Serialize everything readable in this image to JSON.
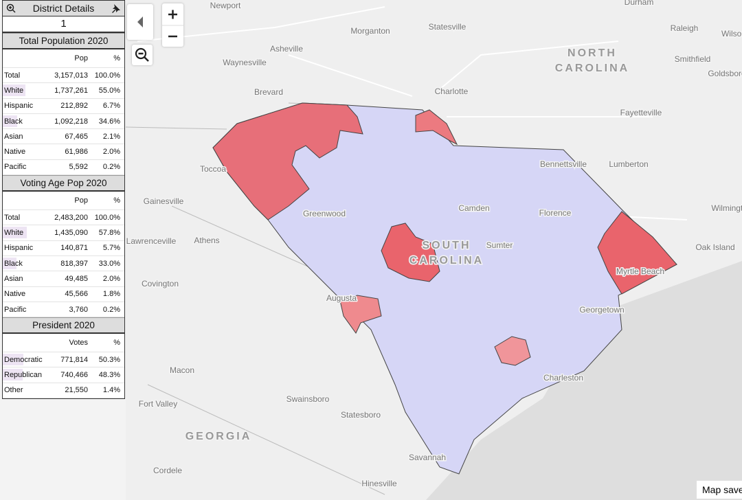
{
  "panel": {
    "title": "District Details",
    "district": "1",
    "sections": [
      {
        "title": "Total Population 2020",
        "columns": [
          "Pop",
          "%"
        ],
        "rows": [
          [
            "Total",
            "3,157,013",
            "100.0%"
          ],
          [
            "White",
            "1,737,261",
            "55.0%"
          ],
          [
            "Hispanic",
            "212,892",
            "6.7%"
          ],
          [
            "Black",
            "1,092,218",
            "34.6%"
          ],
          [
            "Asian",
            "67,465",
            "2.1%"
          ],
          [
            "Native",
            "61,986",
            "2.0%"
          ],
          [
            "Pacific",
            "5,592",
            "0.2%"
          ]
        ]
      },
      {
        "title": "Voting Age Pop 2020",
        "columns": [
          "Pop",
          "%"
        ],
        "rows": [
          [
            "Total",
            "2,483,200",
            "100.0%"
          ],
          [
            "White",
            "1,435,090",
            "57.8%"
          ],
          [
            "Hispanic",
            "140,871",
            "5.7%"
          ],
          [
            "Black",
            "818,397",
            "33.0%"
          ],
          [
            "Asian",
            "49,485",
            "2.0%"
          ],
          [
            "Native",
            "45,566",
            "1.8%"
          ],
          [
            "Pacific",
            "3,760",
            "0.2%"
          ]
        ]
      },
      {
        "title": "President 2020",
        "columns": [
          "Votes",
          "%"
        ],
        "rows": [
          [
            "Democratic",
            "771,814",
            "50.3%"
          ],
          [
            "Republican",
            "740,466",
            "48.3%"
          ],
          [
            "Other",
            "21,550",
            "1.4%"
          ]
        ]
      }
    ]
  },
  "map": {
    "labels": [
      "Newport",
      "Durham",
      "Morganton",
      "Statesville",
      "Raleigh",
      "Wilson",
      "Asheville",
      "Waynesville",
      "NORTH",
      "CAROLINA",
      "Smithfield",
      "Goldsboro",
      "Brevard",
      "Charlotte",
      "Fayetteville",
      "Bennettsville",
      "Lumberton",
      "Toccoa",
      "Gainesville",
      "Greenwood",
      "Camden",
      "Florence",
      "Wilmington",
      "Athens",
      "Lawrenceville",
      "SOUTH",
      "CAROLINA",
      "Sumter",
      "Oak Island",
      "Myrtle Beach",
      "Covington",
      "Augusta",
      "Georgetown",
      "Macon",
      "Charleston",
      "Swainsboro",
      "Fort Valley",
      "Statesboro",
      "GEORGIA",
      "Savannah",
      "Cordele",
      "Hinesville"
    ],
    "save_button": "Map save"
  }
}
